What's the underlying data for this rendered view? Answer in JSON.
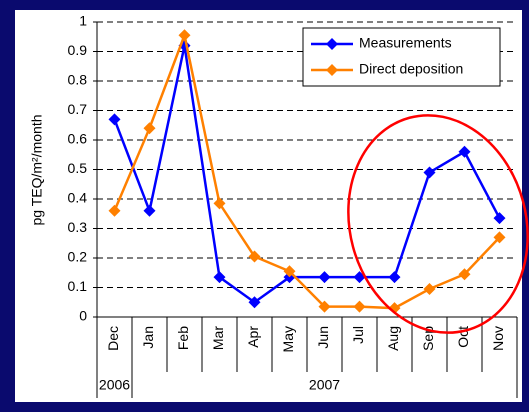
{
  "chart_data": {
    "type": "line",
    "ylabel": "pg TEQ/m²/month",
    "categories": [
      "Dec",
      "Jan",
      "Feb",
      "Mar",
      "Apr",
      "May",
      "Jun",
      "Jul",
      "Aug",
      "Sep",
      "Oct",
      "Nov"
    ],
    "year_labels": [
      "2006",
      "2007"
    ],
    "series": [
      {
        "name": "Measurements",
        "color": "#0000ff",
        "values": [
          0.67,
          0.36,
          0.92,
          0.135,
          0.05,
          0.135,
          0.135,
          0.135,
          0.135,
          0.49,
          0.56,
          0.335
        ]
      },
      {
        "name": "Direct deposition",
        "color": "#ff8000",
        "values": [
          0.36,
          0.64,
          0.955,
          0.385,
          0.205,
          0.155,
          0.035,
          0.035,
          0.03,
          0.095,
          0.145,
          0.27
        ]
      }
    ],
    "ylim": [
      0,
      1
    ],
    "yticks": [
      0,
      0.1,
      0.2,
      0.3,
      0.4,
      0.5,
      0.6,
      0.7,
      0.8,
      0.9,
      1
    ],
    "grid": true,
    "legend": "upper right"
  }
}
